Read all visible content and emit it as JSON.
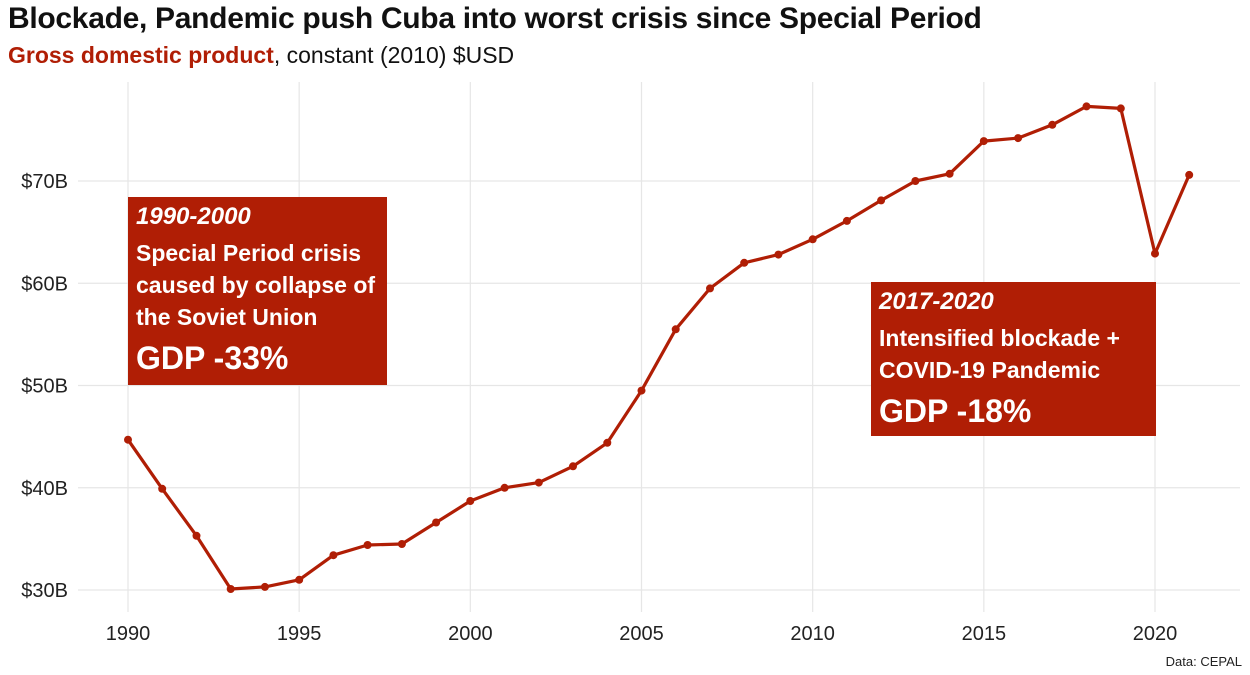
{
  "title": "Blockade, Pandemic push Cuba into worst crisis since Special Period",
  "subtitle": {
    "highlight": "Gross domestic product",
    "rest": ", constant (2010) $USD"
  },
  "source": "Data: CEPAL",
  "colors": {
    "accent": "#b01e05",
    "grid": "#e6e6e6",
    "text": "#111111"
  },
  "annotations": [
    {
      "period": "1990-2000",
      "text": "Special Period crisis caused by collapse of the Soviet Union",
      "change": "GDP -33%"
    },
    {
      "period": "2017-2020",
      "text": "Intensified blockade + COVID-19 Pandemic",
      "change": "GDP -18%"
    }
  ],
  "chart_data": {
    "type": "line",
    "title": "Blockade, Pandemic push Cuba into worst crisis since Special Period",
    "subtitle": "Gross domestic product, constant (2010) $USD",
    "xlabel": "",
    "ylabel": "",
    "xlim": [
      1990,
      2021
    ],
    "ylim": [
      30,
      77
    ],
    "x_ticks": [
      1990,
      1995,
      2000,
      2005,
      2010,
      2015,
      2020
    ],
    "x_tick_labels": [
      "1990",
      "1995",
      "2000",
      "2005",
      "2010",
      "2015",
      "2020"
    ],
    "y_ticks": [
      30,
      40,
      50,
      60,
      70
    ],
    "y_tick_labels": [
      "$30B",
      "$40B",
      "$50B",
      "$60B",
      "$70B"
    ],
    "grid": true,
    "legend": "none",
    "units": "$B",
    "series": [
      {
        "x": [
          1990,
          1991,
          1992,
          1993,
          1994,
          1995,
          1996,
          1997,
          1998,
          1999,
          2000,
          2001,
          2002,
          2003,
          2004,
          2005,
          2006,
          2007,
          2008,
          2009,
          2010,
          2011,
          2012,
          2013,
          2014,
          2015,
          2016,
          2017,
          2018,
          2019,
          2020,
          2021
        ],
        "values": [
          44.7,
          39.9,
          35.3,
          30.1,
          30.3,
          31.0,
          33.4,
          34.4,
          34.5,
          36.6,
          38.7,
          40.0,
          40.5,
          42.1,
          44.4,
          49.5,
          55.5,
          59.5,
          62.0,
          62.8,
          64.3,
          66.1,
          68.1,
          70.0,
          70.7,
          73.9,
          74.2,
          75.5,
          77.3,
          77.1,
          62.9,
          70.6
        ]
      }
    ]
  }
}
